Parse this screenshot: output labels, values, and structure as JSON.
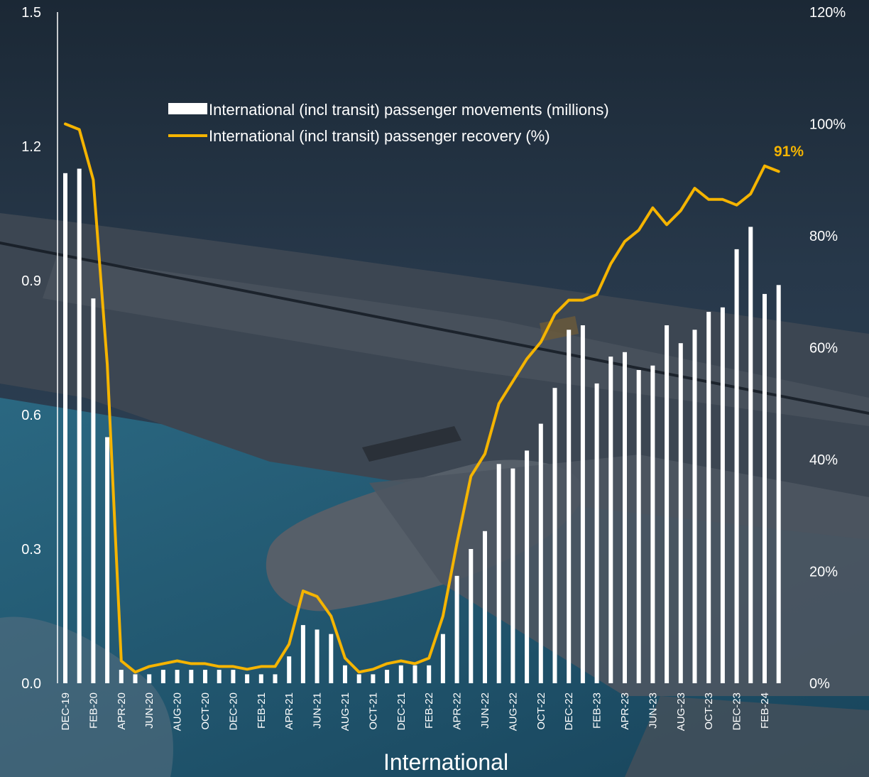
{
  "chart_data": {
    "type": "bar",
    "title": "",
    "xlabel": "International",
    "ylabel_left": "",
    "ylabel_right": "",
    "ylim_left": [
      0,
      1.5
    ],
    "ylim_right": [
      0,
      1.2
    ],
    "left_ticks": [
      "0.0",
      "0.3",
      "0.6",
      "0.9",
      "1.2",
      "1.5"
    ],
    "right_ticks": [
      "0%",
      "20%",
      "40%",
      "60%",
      "80%",
      "100%",
      "120%"
    ],
    "grid": false,
    "legend_position": "top-center",
    "categories": [
      "DEC-19",
      "JAN-20",
      "FEB-20",
      "MAR-20",
      "APR-20",
      "MAY-20",
      "JUN-20",
      "JUL-20",
      "AUG-20",
      "SEP-20",
      "OCT-20",
      "NOV-20",
      "DEC-20",
      "JAN-21",
      "FEB-21",
      "MAR-21",
      "APR-21",
      "MAY-21",
      "JUN-21",
      "JUL-21",
      "AUG-21",
      "SEP-21",
      "OCT-21",
      "NOV-21",
      "DEC-21",
      "JAN-22",
      "FEB-22",
      "MAR-22",
      "APR-22",
      "MAY-22",
      "JUN-22",
      "JUL-22",
      "AUG-22",
      "SEP-22",
      "OCT-22",
      "NOV-22",
      "DEC-22",
      "JAN-23",
      "FEB-23",
      "MAR-23",
      "APR-23",
      "MAY-23",
      "JUN-23",
      "JUL-23",
      "AUG-23",
      "SEP-23",
      "OCT-23",
      "NOV-23",
      "DEC-23",
      "JAN-24",
      "FEB-24",
      "MAR-24"
    ],
    "labeled_ticks": [
      "DEC-19",
      "FEB-20",
      "APR-20",
      "JUN-20",
      "AUG-20",
      "OCT-20",
      "DEC-20",
      "FEB-21",
      "APR-21",
      "JUN-21",
      "AUG-21",
      "OCT-21",
      "DEC-21",
      "FEB-22",
      "APR-22",
      "JUN-22",
      "AUG-22",
      "OCT-22",
      "DEC-22",
      "FEB-23",
      "APR-23",
      "JUN-23",
      "AUG-23",
      "OCT-23",
      "DEC-23",
      "FEB-24"
    ],
    "series": [
      {
        "name": "International (incl transit) passenger movements (millions)",
        "type": "bar",
        "axis": "left",
        "color": "#ffffff",
        "values": [
          1.14,
          1.15,
          0.86,
          0.55,
          0.03,
          0.02,
          0.02,
          0.03,
          0.03,
          0.03,
          0.03,
          0.03,
          0.03,
          0.02,
          0.02,
          0.02,
          0.06,
          0.13,
          0.12,
          0.11,
          0.04,
          0.02,
          0.02,
          0.03,
          0.04,
          0.04,
          0.04,
          0.11,
          0.24,
          0.3,
          0.34,
          0.49,
          0.48,
          0.52,
          0.58,
          0.66,
          0.79,
          0.8,
          0.67,
          0.73,
          0.74,
          0.7,
          0.71,
          0.8,
          0.76,
          0.79,
          0.83,
          0.84,
          0.97,
          1.02,
          0.87,
          0.89
        ]
      },
      {
        "name": "International (incl transit) passenger recovery (%)",
        "type": "line",
        "axis": "right",
        "color": "#f5b400",
        "values": [
          1.0,
          0.99,
          0.9,
          0.57,
          0.04,
          0.02,
          0.03,
          0.035,
          0.04,
          0.035,
          0.035,
          0.03,
          0.03,
          0.025,
          0.03,
          0.03,
          0.07,
          0.165,
          0.155,
          0.12,
          0.045,
          0.02,
          0.025,
          0.035,
          0.04,
          0.035,
          0.045,
          0.12,
          0.25,
          0.37,
          0.41,
          0.5,
          0.54,
          0.58,
          0.61,
          0.66,
          0.685,
          0.685,
          0.695,
          0.75,
          0.79,
          0.81,
          0.85,
          0.82,
          0.845,
          0.885,
          0.865,
          0.865,
          0.855,
          0.875,
          0.925,
          0.915
        ]
      }
    ],
    "annotation": "91%"
  }
}
